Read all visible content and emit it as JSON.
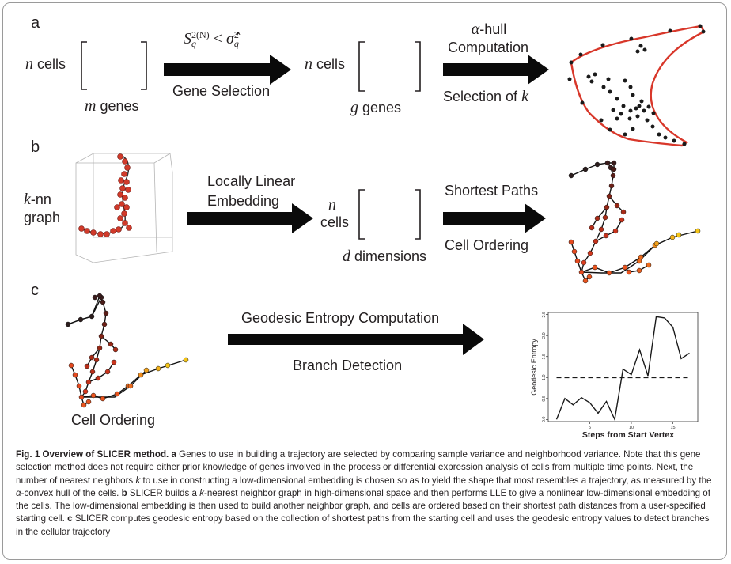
{
  "figure": {
    "panel_a": {
      "letter": "a",
      "matrix_left": {
        "rows": "cells",
        "cols": "genes"
      },
      "condition": {
        "base": "S",
        "sup": "2(N)",
        "sub": "q",
        "op": " < ",
        "rhs_base": "σ̂",
        "rhs_sup": "2",
        "rhs_sub": "q"
      },
      "step1_label": "Gene Selection",
      "matrix_mid": {
        "rows": "cells",
        "cols": "genes"
      },
      "step2_line1": "-hull",
      "step2_line2": "Computation",
      "step2_line3": "Selection of",
      "n": "n",
      "m": "m",
      "g": "g",
      "alpha": "α",
      "k": "k"
    },
    "panel_b": {
      "letter": "b",
      "knn_k": "k",
      "knn_line1": "-nn",
      "knn_line2": "graph",
      "step1_line1": "Locally Linear",
      "step1_line2": "Embedding",
      "matrix": {
        "n": "n",
        "rows": "cells",
        "d": "d",
        "cols": "dimensions"
      },
      "step2_line1": "Shortest Paths",
      "step2_line2": "Cell Ordering"
    },
    "panel_c": {
      "letter": "c",
      "tree_label": "Cell Ordering",
      "step_line1": "Geodesic Entropy Computation",
      "step_line2": "Branch Detection",
      "plot": {
        "ylabel": "Geodesic Entropy",
        "xlabel": "Steps from Start Vertex"
      }
    },
    "caption": {
      "fig_label": "Fig. 1",
      "text_1": " Overview of SLICER method. ",
      "a": "a",
      "text_2": " Genes to use in building a trajectory are selected by comparing sample variance and neighborhood variance. Note that this gene selection method does not require either prior knowledge of genes involved in the process or differential expression analysis of cells from multiple time points. Next, the number of nearest neighbors ",
      "k1": "k",
      "text_3": " to use in constructing a low-dimensional embedding is chosen so as to yield the shape that most resembles a trajectory, as measured by the ",
      "alpha": "α",
      "text_4": "-convex hull of the cells. ",
      "b": "b",
      "text_5": " SLICER builds a ",
      "k2": "k",
      "text_6": "-nearest neighbor graph in high-dimensional space and then performs LLE to give a nonlinear low-dimensional embedding of the cells. The low-dimensional embedding is then used to build another neighbor graph, and cells are ordered based on their shortest path distances from a user-specified starting cell. ",
      "c": "c",
      "text_7": " SLICER computes geodesic entropy based on the collection of shortest paths from the starting cell and uses the geodesic entropy values to detect branches in the cellular trajectory"
    }
  },
  "chart_data": {
    "type": "line",
    "title": "",
    "xlabel": "Steps from Start Vertex",
    "ylabel": "Geodesic Entropy",
    "x": [
      1,
      2,
      3,
      4,
      5,
      6,
      7,
      8,
      9,
      10,
      11,
      12,
      13,
      14,
      15,
      16,
      17
    ],
    "values": [
      0.0,
      0.5,
      0.35,
      0.52,
      0.4,
      0.15,
      0.43,
      0.0,
      1.2,
      1.07,
      1.66,
      1.04,
      2.45,
      2.42,
      2.2,
      1.45,
      1.58
    ],
    "threshold": 1.0,
    "xticks": [
      5,
      10,
      15
    ],
    "yticks": [
      0.0,
      0.5,
      1.0,
      1.5,
      2.0,
      2.5
    ],
    "xlim": [
      0,
      18
    ],
    "ylim": [
      -0.05,
      2.55
    ],
    "grid": false,
    "legend": "none",
    "colors": {
      "line": "#1a1a1a",
      "threshold": "#1a1a1a"
    }
  },
  "colors": {
    "hull": "#d8372a",
    "node_dark": "#2b1d1d",
    "node_red": "#c9321f",
    "node_orange": "#e8541e",
    "node_yellow": "#f5c518",
    "arrow": "#0a0a0a"
  }
}
